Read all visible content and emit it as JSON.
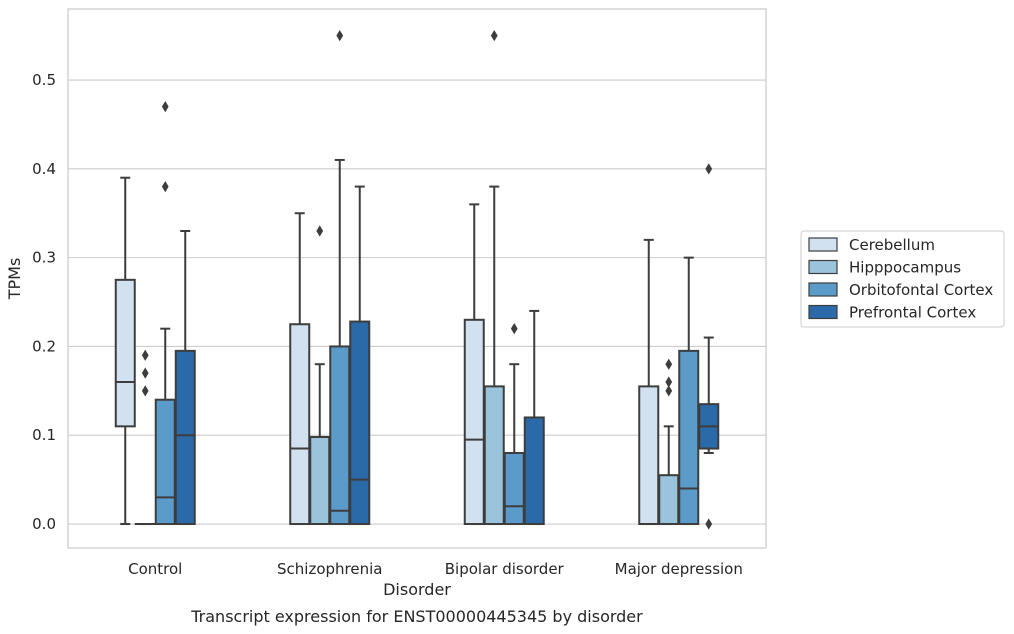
{
  "chart_data": {
    "type": "box",
    "caption": "Transcript expression for ENST00000445345 by disorder",
    "xlabel": "Disorder",
    "ylabel": "TPMs",
    "ylim": [
      -0.027,
      0.58
    ],
    "yticks": [
      "0.0",
      "0.1",
      "0.2",
      "0.3",
      "0.4",
      "0.5"
    ],
    "grid": true,
    "legend_position": "right",
    "categories": [
      "Control",
      "Schizophrenia",
      "Bipolar disorder",
      "Major depression"
    ],
    "series": [
      {
        "name": "Cerebellum",
        "color": "#d2e1f0",
        "boxes": [
          {
            "whislo": 0.0,
            "q1": 0.11,
            "med": 0.16,
            "q3": 0.275,
            "whishi": 0.39,
            "fliers": []
          },
          {
            "whislo": 0.0,
            "q1": 0.0,
            "med": 0.085,
            "q3": 0.225,
            "whishi": 0.35,
            "fliers": []
          },
          {
            "whislo": 0.0,
            "q1": 0.0,
            "med": 0.095,
            "q3": 0.23,
            "whishi": 0.36,
            "fliers": []
          },
          {
            "whislo": 0.0,
            "q1": 0.0,
            "med": 0.0,
            "q3": 0.155,
            "whishi": 0.32,
            "fliers": []
          }
        ]
      },
      {
        "name": "Hipppocampus",
        "color": "#9ac3dc",
        "boxes": [
          {
            "whislo": 0.0,
            "q1": 0.0,
            "med": 0.0,
            "q3": 0.0,
            "whishi": 0.0,
            "fliers": [
              0.15,
              0.17,
              0.19
            ]
          },
          {
            "whislo": 0.0,
            "q1": 0.0,
            "med": 0.0,
            "q3": 0.098,
            "whishi": 0.18,
            "fliers": [
              0.33
            ]
          },
          {
            "whislo": 0.0,
            "q1": 0.0,
            "med": 0.0,
            "q3": 0.155,
            "whishi": 0.38,
            "fliers": [
              0.55
            ]
          },
          {
            "whislo": 0.0,
            "q1": 0.0,
            "med": 0.0,
            "q3": 0.055,
            "whishi": 0.11,
            "fliers": [
              0.15,
              0.16,
              0.18
            ]
          }
        ]
      },
      {
        "name": "Orbitofontal Cortex",
        "color": "#5a9bc9",
        "boxes": [
          {
            "whislo": 0.0,
            "q1": 0.0,
            "med": 0.03,
            "q3": 0.14,
            "whishi": 0.22,
            "fliers": [
              0.38,
              0.47
            ]
          },
          {
            "whislo": 0.0,
            "q1": 0.0,
            "med": 0.015,
            "q3": 0.2,
            "whishi": 0.41,
            "fliers": [
              0.55
            ]
          },
          {
            "whislo": 0.0,
            "q1": 0.0,
            "med": 0.02,
            "q3": 0.08,
            "whishi": 0.18,
            "fliers": [
              0.22
            ]
          },
          {
            "whislo": 0.0,
            "q1": 0.0,
            "med": 0.04,
            "q3": 0.195,
            "whishi": 0.3,
            "fliers": []
          }
        ]
      },
      {
        "name": "Prefrontal Cortex",
        "color": "#2a6aa8",
        "boxes": [
          {
            "whislo": 0.0,
            "q1": 0.0,
            "med": 0.1,
            "q3": 0.195,
            "whishi": 0.33,
            "fliers": []
          },
          {
            "whislo": 0.0,
            "q1": 0.0,
            "med": 0.05,
            "q3": 0.228,
            "whishi": 0.38,
            "fliers": []
          },
          {
            "whislo": 0.0,
            "q1": 0.0,
            "med": 0.0,
            "q3": 0.12,
            "whishi": 0.24,
            "fliers": []
          },
          {
            "whislo": 0.08,
            "q1": 0.085,
            "med": 0.11,
            "q3": 0.135,
            "whishi": 0.21,
            "fliers": [
              0.0,
              0.4
            ]
          }
        ]
      }
    ]
  }
}
